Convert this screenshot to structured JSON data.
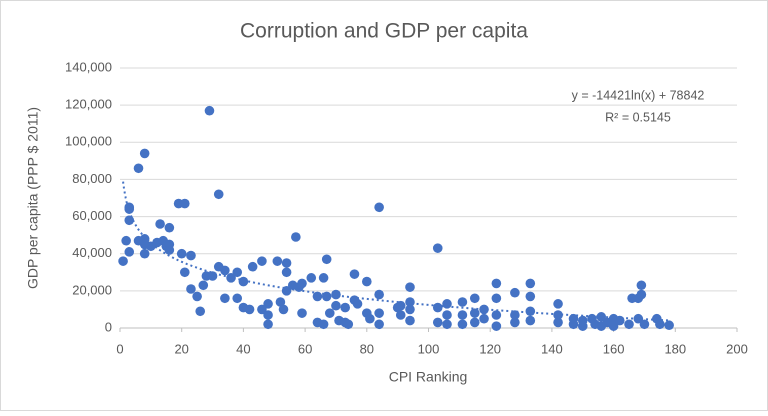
{
  "chart_data": {
    "type": "scatter",
    "title": "Corruption and GDP per capita",
    "x_label": "CPI Ranking",
    "y_label": "GDP per capita (PPP $ 2011)",
    "xlim": [
      0,
      200
    ],
    "xticks": [
      0,
      20,
      40,
      60,
      80,
      100,
      120,
      140,
      160,
      180,
      200
    ],
    "ylim": [
      0,
      140000
    ],
    "yticks": [
      {
        "value": 0,
        "label": "0"
      },
      {
        "value": 20000,
        "label": "20,000"
      },
      {
        "value": 40000,
        "label": "40,000"
      },
      {
        "value": 60000,
        "label": "60,000"
      },
      {
        "value": 80000,
        "label": "80,000"
      },
      {
        "value": 100000,
        "label": "100,000"
      },
      {
        "value": 120000,
        "label": "120,000"
      },
      {
        "value": 140000,
        "label": "140,000"
      }
    ],
    "grid": true,
    "trendline": {
      "equation": "y = -14421ln(x) + 78842",
      "r2": "R² = 0.5145",
      "coefficients": [
        -14421,
        78842
      ],
      "color": "#4472c4"
    },
    "series": [
      {
        "color": "#4472c4",
        "x": [
          1,
          2,
          3,
          3,
          3,
          3,
          6,
          8,
          6,
          8,
          8,
          8,
          10,
          12,
          13,
          14,
          15,
          16,
          16,
          16,
          19,
          21,
          20,
          21,
          23,
          23,
          25,
          26,
          27,
          28,
          29,
          30,
          32,
          32,
          34,
          34,
          36,
          38,
          38,
          40,
          40,
          42,
          43,
          46,
          46,
          48,
          48,
          48,
          51,
          52,
          53,
          54,
          54,
          54,
          56,
          57,
          58,
          59,
          59,
          62,
          64,
          64,
          66,
          66,
          67,
          67,
          68,
          70,
          70,
          71,
          73,
          73,
          74,
          76,
          76,
          77,
          80,
          80,
          81,
          84,
          84,
          84,
          84,
          90,
          91,
          91,
          94,
          94,
          94,
          94,
          103,
          103,
          103,
          106,
          106,
          106,
          111,
          111,
          111,
          115,
          115,
          115,
          118,
          118,
          122,
          122,
          122,
          122,
          128,
          128,
          128,
          133,
          133,
          133,
          133,
          142,
          142,
          142,
          147,
          147,
          150,
          150,
          153,
          154,
          156,
          156,
          158,
          160,
          160,
          162,
          165,
          166,
          168,
          169,
          169,
          168,
          170,
          174,
          175,
          178
        ],
        "y": [
          36000,
          47000,
          65000,
          64000,
          58000,
          41000,
          86000,
          94000,
          47000,
          48000,
          45000,
          40000,
          44000,
          46000,
          56000,
          47000,
          44000,
          54000,
          45000,
          42000,
          67000,
          67000,
          40000,
          30000,
          39000,
          21000,
          17000,
          9000,
          23000,
          28000,
          117000,
          28000,
          72000,
          33000,
          31000,
          16000,
          27000,
          30000,
          16000,
          25000,
          11000,
          10000,
          33000,
          36000,
          10000,
          13000,
          7000,
          2000,
          36000,
          14000,
          10000,
          35000,
          30000,
          20000,
          23000,
          49000,
          22000,
          24000,
          8000,
          27000,
          17000,
          3000,
          27000,
          2000,
          37000,
          17000,
          8000,
          18000,
          12000,
          4000,
          11000,
          3000,
          2000,
          29000,
          15000,
          13000,
          25000,
          8000,
          5000,
          65000,
          18000,
          8000,
          2000,
          11000,
          12000,
          7000,
          22000,
          14000,
          10000,
          4000,
          43000,
          11000,
          3000,
          13000,
          7000,
          2000,
          14000,
          7000,
          2000,
          16000,
          8000,
          3000,
          10000,
          5000,
          24000,
          16000,
          7000,
          1000,
          19000,
          7000,
          3000,
          24000,
          17000,
          9000,
          4000,
          13000,
          7000,
          3000,
          5000,
          2000,
          4000,
          1000,
          5000,
          2000,
          6000,
          1000,
          3000,
          5000,
          1000,
          4000,
          2000,
          16000,
          16000,
          18000,
          23000,
          5000,
          2000,
          5000,
          2000,
          1500
        ]
      }
    ]
  }
}
